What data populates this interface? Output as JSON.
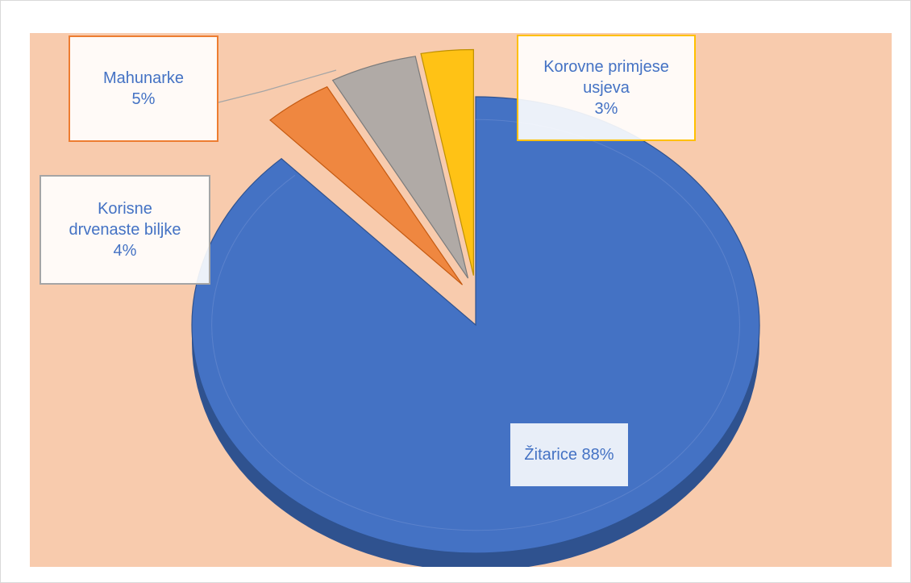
{
  "chart_data": {
    "type": "pie",
    "title": "",
    "slices": [
      {
        "label": "Žitarice",
        "value": 88,
        "value_text": "88%",
        "color": "#4472c4",
        "edge": "#2f528f"
      },
      {
        "label": "Korisne drvenaste biljke",
        "value": 4,
        "value_text": "4%",
        "color": "#ed7d31",
        "edge": "#c55a11"
      },
      {
        "label": "Mahunarke",
        "value": 5,
        "value_text": "5%",
        "color": "#a5a5a5",
        "edge": "#7b7b7b"
      },
      {
        "label": "Korovne primjese usjeva",
        "value": 3,
        "value_text": "3%",
        "color": "#ffc000",
        "edge": "#bf9000"
      }
    ],
    "legend": "none",
    "background_color": "#f8cbad"
  },
  "labels": {
    "zitarice": {
      "line1": "Žitarice 88%"
    },
    "mahunarke": {
      "line1": "Mahunarke",
      "line2": "5%"
    },
    "korisne": {
      "line1": "Korisne",
      "line2": "drvenaste biljke",
      "line3": "4%"
    },
    "korovne": {
      "line1": "Korovne primjese",
      "line2": "usjeva",
      "line3": "3%"
    }
  },
  "colors": {
    "label_text": "#4472c4",
    "label_border_orange": "#ed7d31",
    "label_border_gray": "#a5a5a5",
    "label_border_gold": "#ffc000",
    "label_border_blue": "#4472c4"
  }
}
